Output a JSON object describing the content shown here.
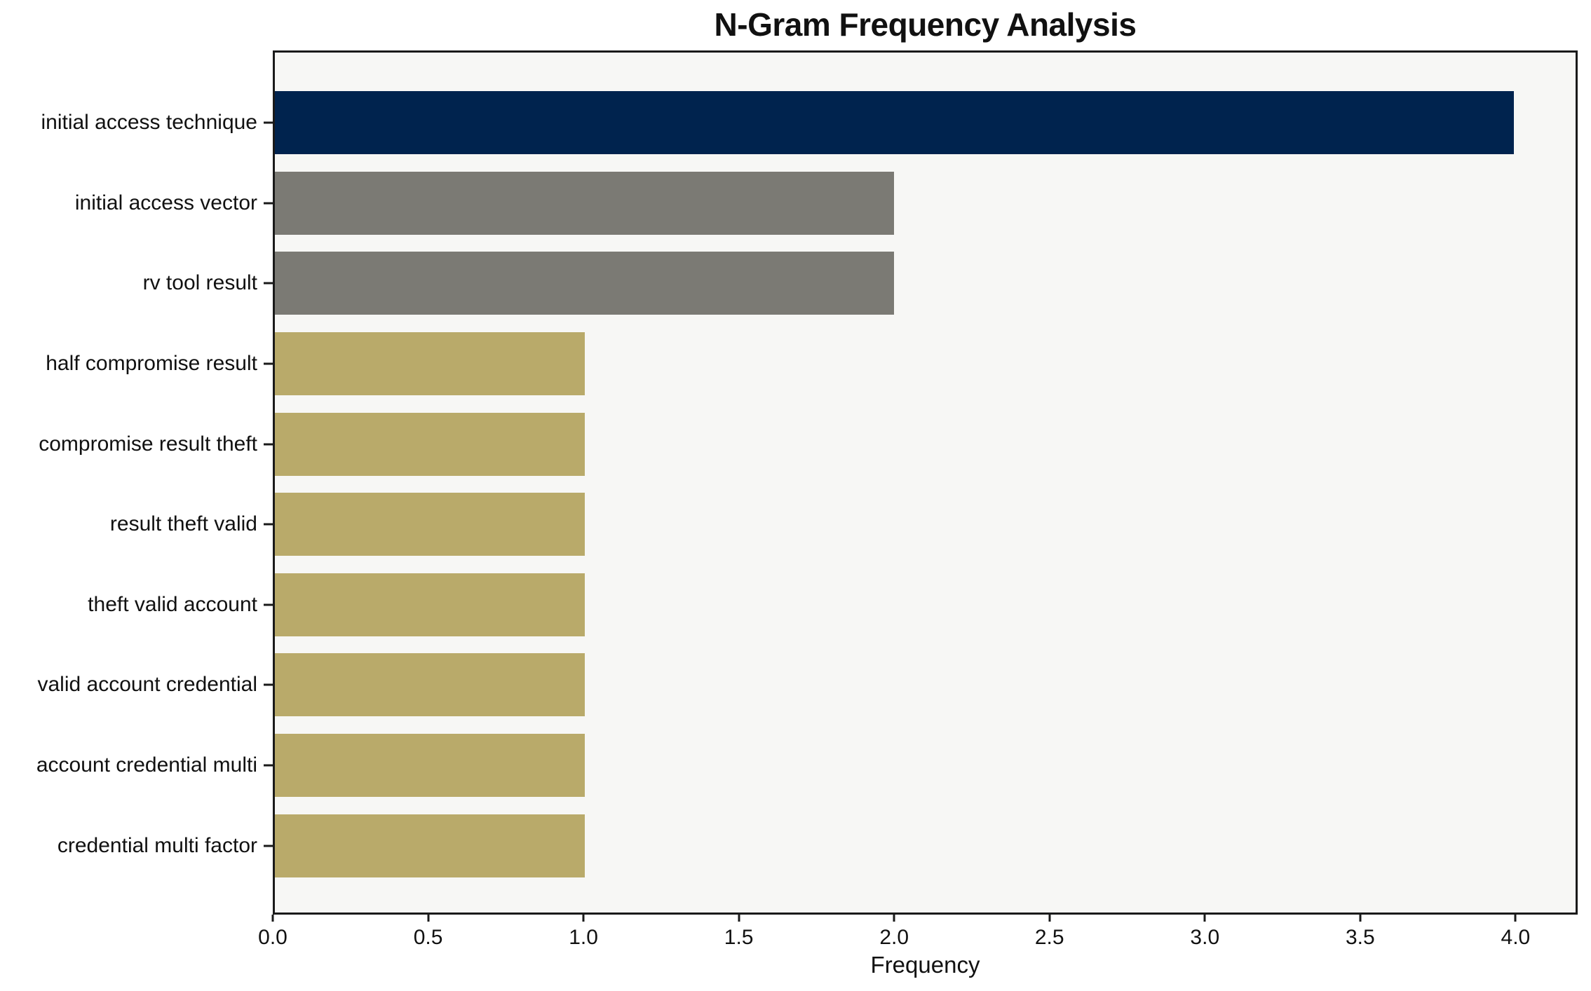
{
  "chart_data": {
    "type": "bar",
    "orientation": "horizontal",
    "title": "N-Gram Frequency Analysis",
    "xlabel": "Frequency",
    "categories": [
      "initial access technique",
      "initial access vector",
      "rv tool result",
      "half compromise result",
      "compromise result theft",
      "result theft valid",
      "theft valid account",
      "valid account credential",
      "account credential multi",
      "credential multi factor"
    ],
    "values": [
      4,
      2,
      2,
      1,
      1,
      1,
      1,
      1,
      1,
      1
    ],
    "bar_colors": [
      "#00234e",
      "#7b7a74",
      "#7b7a74",
      "#b9aa6a",
      "#b9aa6a",
      "#b9aa6a",
      "#b9aa6a",
      "#b9aa6a",
      "#b9aa6a",
      "#b9aa6a"
    ],
    "xlim": [
      0,
      4.2
    ],
    "xticks": [
      "0.0",
      "0.5",
      "1.0",
      "1.5",
      "2.0",
      "2.5",
      "3.0",
      "3.5",
      "4.0"
    ],
    "grid": false,
    "legend_position": "none",
    "colors": {
      "plot_background": "#f7f7f5",
      "page_background": "#ffffff",
      "axis": "#1a1a1a",
      "text": "#111111"
    }
  }
}
